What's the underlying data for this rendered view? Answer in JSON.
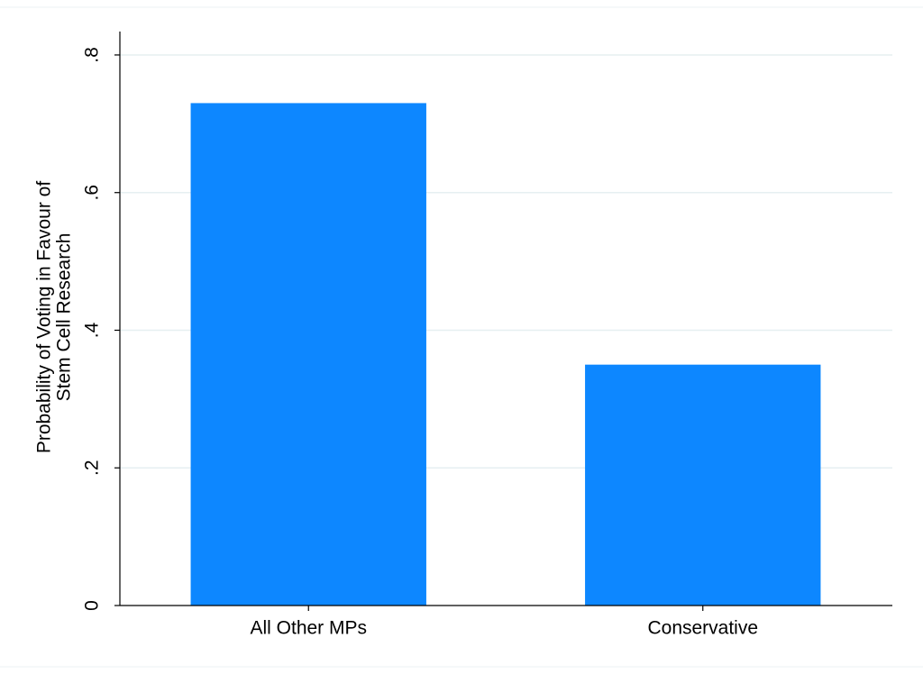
{
  "chart_data": {
    "type": "bar",
    "ylabel": [
      "Probability of Voting in Favour of",
      "Stem Cell Research"
    ],
    "categories": [
      "All Other MPs",
      "Conservative"
    ],
    "values": [
      0.73,
      0.35
    ],
    "color": "#0d87ff",
    "ylim": [
      0,
      0.834
    ],
    "yticks": [
      0,
      {
        "value": 0.2,
        "label": ".2"
      },
      {
        "value": 0.4,
        "label": ".4"
      },
      {
        "value": 0.6,
        "label": ".6"
      },
      {
        "value": 0.8,
        "label": ".8"
      }
    ],
    "grid": true
  }
}
